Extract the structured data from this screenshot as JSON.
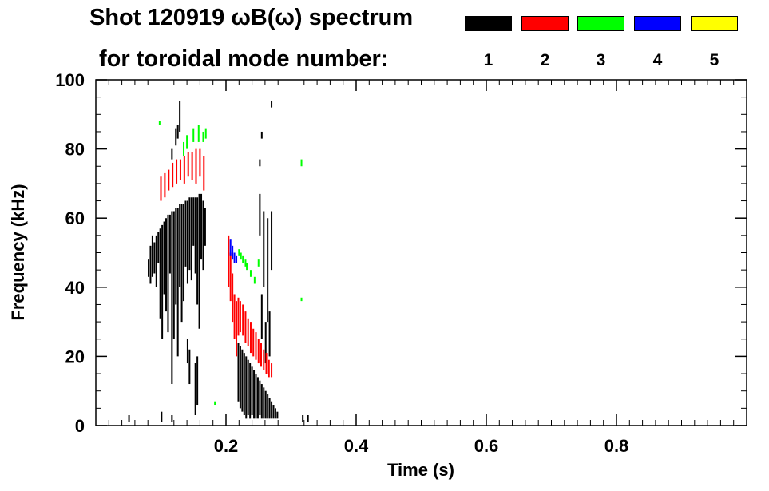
{
  "header": {
    "title_line1": "Shot 120919 ωB(ω) spectrum",
    "title_line2": "for toroidal mode number:"
  },
  "legend": [
    {
      "label": "1",
      "color": "#000000"
    },
    {
      "label": "2",
      "color": "#ff0000"
    },
    {
      "label": "3",
      "color": "#00ff00"
    },
    {
      "label": "4",
      "color": "#0000ff"
    },
    {
      "label": "5",
      "color": "#ffff00"
    }
  ],
  "chart_data": {
    "type": "scatter",
    "title": "Shot 120919 ωB(ω) spectrum",
    "xlabel": "Time (s)",
    "ylabel": "Frequency (kHz)",
    "xlim": [
      0.0,
      1.0
    ],
    "ylim": [
      0,
      100
    ],
    "x_ticks": [
      0.2,
      0.4,
      0.6,
      0.8
    ],
    "x_tick_labels": [
      "0.2",
      "0.4",
      "0.6",
      "0.8"
    ],
    "y_ticks": [
      0,
      20,
      40,
      60,
      80,
      100
    ],
    "y_tick_labels": [
      "0",
      "20",
      "40",
      "60",
      "80",
      "100"
    ],
    "grid": false,
    "series": [
      {
        "name": "1",
        "color": "#000000",
        "segments": [
          [
            0.081,
            43,
            0.081,
            48
          ],
          [
            0.084,
            41,
            0.084,
            52
          ],
          [
            0.087,
            43,
            0.087,
            55
          ],
          [
            0.09,
            44,
            0.09,
            53
          ],
          [
            0.093,
            40,
            0.093,
            55
          ],
          [
            0.096,
            47,
            0.096,
            56
          ],
          [
            0.099,
            31,
            0.099,
            57
          ],
          [
            0.102,
            25,
            0.102,
            58
          ],
          [
            0.105,
            38,
            0.105,
            59
          ],
          [
            0.108,
            33,
            0.108,
            60
          ],
          [
            0.111,
            27,
            0.111,
            61
          ],
          [
            0.114,
            44,
            0.114,
            61
          ],
          [
            0.117,
            12,
            0.117,
            62
          ],
          [
            0.12,
            25,
            0.12,
            62
          ],
          [
            0.123,
            35,
            0.123,
            63
          ],
          [
            0.126,
            20,
            0.126,
            63
          ],
          [
            0.129,
            40,
            0.129,
            64
          ],
          [
            0.132,
            30,
            0.132,
            64
          ],
          [
            0.135,
            36,
            0.135,
            64
          ],
          [
            0.138,
            46,
            0.138,
            65
          ],
          [
            0.141,
            41,
            0.141,
            65
          ],
          [
            0.144,
            45,
            0.144,
            66
          ],
          [
            0.147,
            42,
            0.147,
            66
          ],
          [
            0.15,
            52,
            0.15,
            66
          ],
          [
            0.153,
            44,
            0.153,
            66
          ],
          [
            0.156,
            35,
            0.156,
            66
          ],
          [
            0.159,
            28,
            0.159,
            67
          ],
          [
            0.162,
            48,
            0.162,
            67
          ],
          [
            0.165,
            45,
            0.165,
            65
          ],
          [
            0.168,
            52,
            0.168,
            63
          ],
          [
            0.141,
            18,
            0.141,
            25
          ],
          [
            0.144,
            12,
            0.144,
            22
          ],
          [
            0.153,
            3,
            0.153,
            18
          ],
          [
            0.156,
            6,
            0.156,
            20
          ],
          [
            0.123,
            81,
            0.123,
            86
          ],
          [
            0.126,
            83,
            0.126,
            87
          ],
          [
            0.129,
            85,
            0.129,
            94
          ],
          [
            0.117,
            77,
            0.117,
            80
          ],
          [
            0.219,
            7,
            0.219,
            24
          ],
          [
            0.222,
            5,
            0.222,
            23
          ],
          [
            0.225,
            4,
            0.225,
            22
          ],
          [
            0.228,
            3,
            0.228,
            21
          ],
          [
            0.231,
            2,
            0.231,
            20
          ],
          [
            0.234,
            3,
            0.234,
            19
          ],
          [
            0.237,
            2,
            0.237,
            18
          ],
          [
            0.24,
            3,
            0.24,
            17
          ],
          [
            0.243,
            2,
            0.243,
            16
          ],
          [
            0.246,
            2,
            0.246,
            15
          ],
          [
            0.249,
            2,
            0.249,
            14
          ],
          [
            0.252,
            3,
            0.252,
            13
          ],
          [
            0.255,
            2,
            0.255,
            12
          ],
          [
            0.258,
            2,
            0.258,
            11
          ],
          [
            0.261,
            2,
            0.261,
            10
          ],
          [
            0.264,
            2,
            0.264,
            9
          ],
          [
            0.267,
            2,
            0.267,
            8
          ],
          [
            0.27,
            2,
            0.27,
            7
          ],
          [
            0.273,
            2,
            0.273,
            6
          ],
          [
            0.276,
            2,
            0.276,
            5
          ],
          [
            0.279,
            2,
            0.279,
            4
          ],
          [
            0.252,
            55,
            0.252,
            67
          ],
          [
            0.258,
            40,
            0.258,
            62
          ],
          [
            0.264,
            30,
            0.264,
            60
          ],
          [
            0.27,
            45,
            0.27,
            62
          ],
          [
            0.255,
            25,
            0.255,
            38
          ],
          [
            0.261,
            18,
            0.261,
            30
          ],
          [
            0.267,
            20,
            0.267,
            33
          ],
          [
            0.051,
            1,
            0.051,
            3
          ],
          [
            0.101,
            1,
            0.101,
            4
          ],
          [
            0.117,
            1,
            0.117,
            3
          ],
          [
            0.318,
            1,
            0.318,
            3
          ],
          [
            0.326,
            1,
            0.326,
            3
          ],
          [
            0.27,
            92,
            0.27,
            94
          ],
          [
            0.252,
            75,
            0.252,
            77
          ],
          [
            0.255,
            83,
            0.255,
            85
          ]
        ]
      },
      {
        "name": "2",
        "color": "#ff0000",
        "segments": [
          [
            0.1,
            65,
            0.1,
            72
          ],
          [
            0.106,
            66,
            0.106,
            73
          ],
          [
            0.112,
            68,
            0.112,
            74
          ],
          [
            0.118,
            69,
            0.118,
            76
          ],
          [
            0.124,
            70,
            0.124,
            77
          ],
          [
            0.13,
            71,
            0.13,
            77
          ],
          [
            0.136,
            70,
            0.136,
            78
          ],
          [
            0.142,
            72,
            0.142,
            79
          ],
          [
            0.148,
            71,
            0.148,
            79
          ],
          [
            0.154,
            70,
            0.154,
            80
          ],
          [
            0.16,
            72,
            0.16,
            80
          ],
          [
            0.166,
            68,
            0.166,
            78
          ],
          [
            0.204,
            40,
            0.204,
            55
          ],
          [
            0.207,
            36,
            0.207,
            50
          ],
          [
            0.21,
            30,
            0.21,
            44
          ],
          [
            0.213,
            25,
            0.213,
            38
          ],
          [
            0.216,
            20,
            0.216,
            36
          ],
          [
            0.219,
            26,
            0.219,
            37
          ],
          [
            0.222,
            27,
            0.222,
            36
          ],
          [
            0.226,
            26,
            0.226,
            35
          ],
          [
            0.23,
            24,
            0.23,
            33
          ],
          [
            0.234,
            23,
            0.234,
            31
          ],
          [
            0.238,
            21,
            0.238,
            30
          ],
          [
            0.242,
            20,
            0.242,
            28
          ],
          [
            0.246,
            19,
            0.246,
            27
          ],
          [
            0.25,
            18,
            0.25,
            25
          ],
          [
            0.254,
            17,
            0.254,
            24
          ],
          [
            0.258,
            16,
            0.258,
            22
          ],
          [
            0.262,
            15,
            0.262,
            21
          ],
          [
            0.266,
            14,
            0.266,
            19
          ],
          [
            0.27,
            14,
            0.27,
            18
          ]
        ]
      },
      {
        "name": "3",
        "color": "#00ff00",
        "segments": [
          [
            0.135,
            78,
            0.135,
            82
          ],
          [
            0.14,
            80,
            0.14,
            84
          ],
          [
            0.15,
            82,
            0.15,
            86
          ],
          [
            0.158,
            82,
            0.158,
            87
          ],
          [
            0.165,
            82,
            0.165,
            85
          ],
          [
            0.169,
            83,
            0.169,
            86
          ],
          [
            0.23,
            46,
            0.23,
            48
          ],
          [
            0.238,
            43,
            0.238,
            45
          ],
          [
            0.244,
            41,
            0.244,
            43
          ],
          [
            0.25,
            46,
            0.25,
            48
          ],
          [
            0.22,
            49,
            0.22,
            51
          ],
          [
            0.223,
            48,
            0.223,
            50
          ],
          [
            0.226,
            47,
            0.226,
            49
          ],
          [
            0.232,
            45,
            0.232,
            47
          ],
          [
            0.098,
            87,
            0.098,
            88
          ],
          [
            0.316,
            75,
            0.316,
            77
          ],
          [
            0.316,
            36,
            0.316,
            37
          ],
          [
            0.183,
            6,
            0.183,
            7
          ]
        ]
      },
      {
        "name": "4",
        "color": "#0000ff",
        "segments": [
          [
            0.207,
            49,
            0.207,
            54
          ],
          [
            0.21,
            48,
            0.21,
            52
          ],
          [
            0.213,
            47,
            0.213,
            50
          ],
          [
            0.216,
            47,
            0.216,
            49
          ]
        ]
      },
      {
        "name": "5",
        "color": "#ffff00",
        "segments": []
      }
    ]
  }
}
